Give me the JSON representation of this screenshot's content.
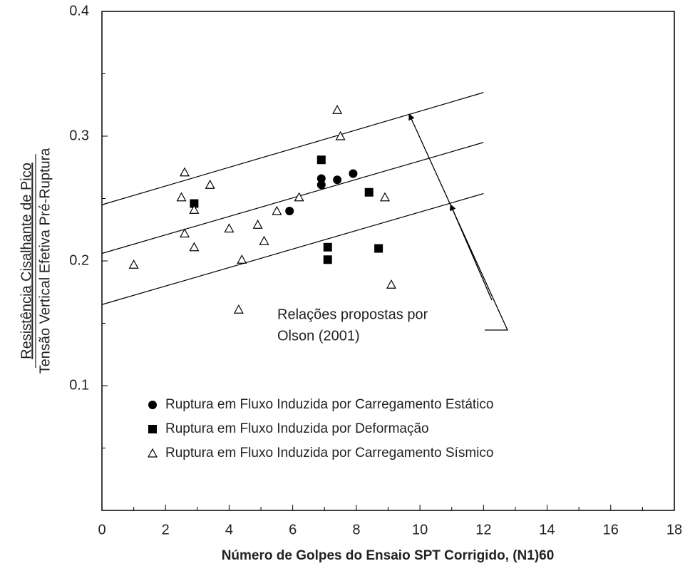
{
  "chart_data": {
    "type": "scatter",
    "xlabel": "Número de Golpes do Ensaio SPT Corrigido, (N1)60",
    "ylabel": [
      "Resistência Cisalhante de Pico",
      "Tensão Vertical Efetiva Pré-Ruptura"
    ],
    "annotation": [
      "Relações propostas por",
      "Olson (2001)"
    ],
    "xlim": [
      0,
      18
    ],
    "xticks": [
      0,
      2,
      4,
      6,
      8,
      10,
      12,
      14,
      16,
      18
    ],
    "xminor": [
      1,
      3,
      5,
      7,
      9,
      11,
      13,
      15,
      17
    ],
    "ylim": [
      0,
      0.4
    ],
    "yticks": [
      0.1,
      0.2,
      0.3,
      0.4
    ],
    "yminor": [
      0.05,
      0.15,
      0.25,
      0.35
    ],
    "lines": [
      {
        "x": [
          0,
          12
        ],
        "values": [
          0.245,
          0.335
        ]
      },
      {
        "x": [
          0,
          12
        ],
        "values": [
          0.206,
          0.295
        ]
      },
      {
        "x": [
          0,
          12
        ],
        "values": [
          0.165,
          0.254
        ]
      }
    ],
    "series": [
      {
        "name": "Ruptura em Fluxo Induzida por Carregamento Estático",
        "marker": "circle",
        "color": "#000",
        "x": [
          5.9,
          6.9,
          6.9,
          7.4,
          7.9
        ],
        "values": [
          0.24,
          0.266,
          0.261,
          0.265,
          0.27
        ]
      },
      {
        "name": "Ruptura em Fluxo Induzida por Deformação",
        "marker": "square",
        "color": "#000",
        "x": [
          2.9,
          6.9,
          8.4,
          7.1,
          7.1,
          8.7
        ],
        "values": [
          0.246,
          0.281,
          0.255,
          0.211,
          0.201,
          0.21
        ]
      },
      {
        "name": "Ruptura em Fluxo Induzida por Carregamento Sísmico",
        "marker": "triangle",
        "color": "#000",
        "x": [
          1.0,
          2.6,
          2.5,
          2.6,
          2.9,
          2.9,
          3.4,
          4.0,
          4.4,
          4.3,
          4.9,
          5.1,
          5.5,
          6.2,
          7.4,
          7.5,
          8.9,
          9.1
        ],
        "values": [
          0.197,
          0.271,
          0.251,
          0.222,
          0.241,
          0.211,
          0.261,
          0.226,
          0.201,
          0.161,
          0.229,
          0.216,
          0.24,
          0.251,
          0.321,
          0.3,
          0.251,
          0.181
        ]
      }
    ]
  }
}
